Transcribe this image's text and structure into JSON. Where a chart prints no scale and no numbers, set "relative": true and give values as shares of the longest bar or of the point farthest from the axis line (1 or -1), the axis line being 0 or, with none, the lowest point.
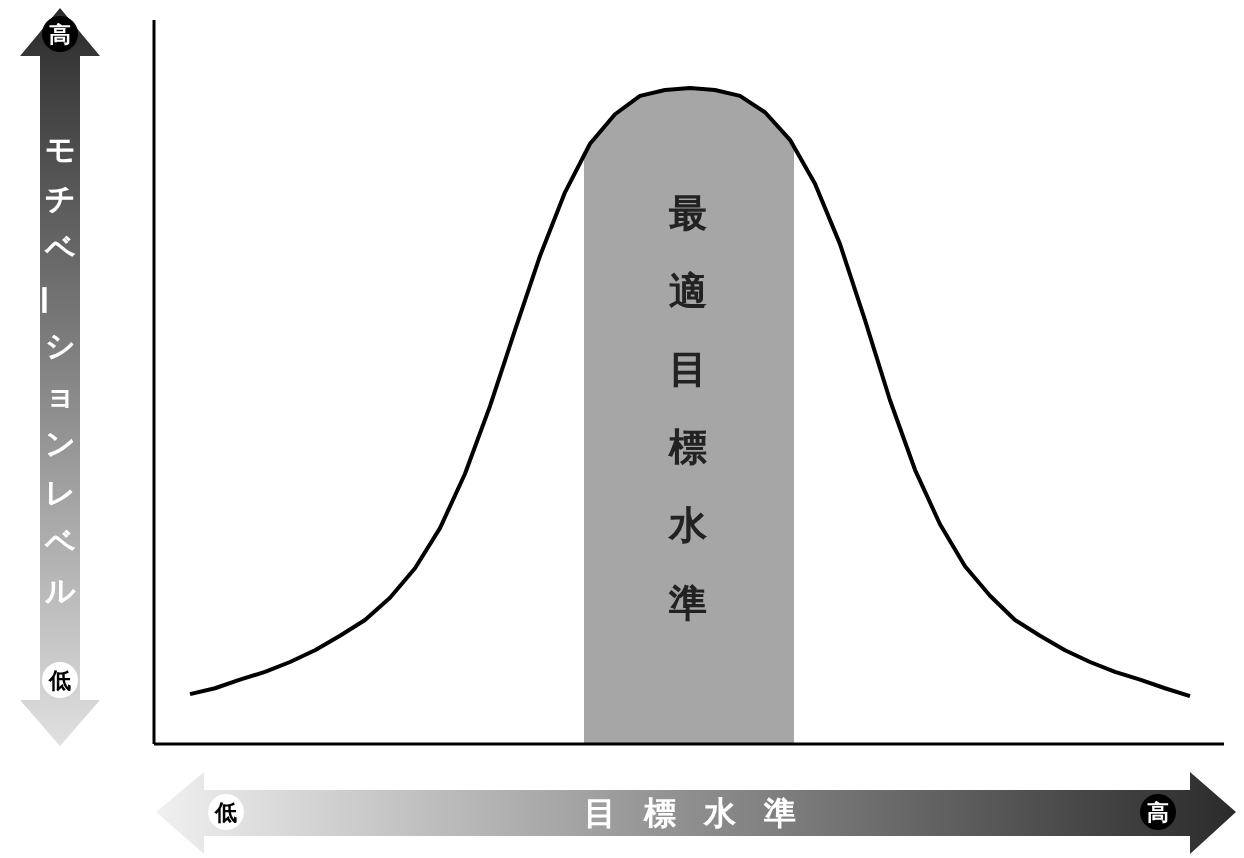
{
  "chart_data": {
    "type": "line",
    "relative": true,
    "categories": [
      null,
      null,
      null,
      null,
      null,
      null,
      null,
      null,
      null,
      null,
      null,
      null,
      null,
      null,
      null,
      null,
      null,
      null,
      null,
      null,
      null,
      null,
      null,
      null,
      null,
      null,
      null,
      null,
      null,
      null,
      null,
      null,
      null,
      null,
      null,
      null,
      null,
      null,
      null,
      null,
      null
    ],
    "series": [
      {
        "color": "#000000",
        "values": [
          0.076,
          0.085,
          0.098,
          0.11,
          0.125,
          0.143,
          0.165,
          0.189,
          0.223,
          0.268,
          0.329,
          0.412,
          0.515,
          0.631,
          0.744,
          0.841,
          0.915,
          0.96,
          0.988,
          0.997,
          1,
          0.997,
          0.988,
          0.963,
          0.921,
          0.854,
          0.762,
          0.646,
          0.524,
          0.418,
          0.335,
          0.271,
          0.226,
          0.189,
          0.165,
          0.143,
          0.125,
          0.11,
          0.098,
          0.085,
          0.073
        ]
      }
    ],
    "xlabel": "目標水準",
    "ylabel": "モチベーションレベル",
    "annotations": [
      "高",
      "低",
      "低",
      "高",
      "最適目標水準"
    ],
    "marker": "none",
    "line_style": "solid"
  }
}
